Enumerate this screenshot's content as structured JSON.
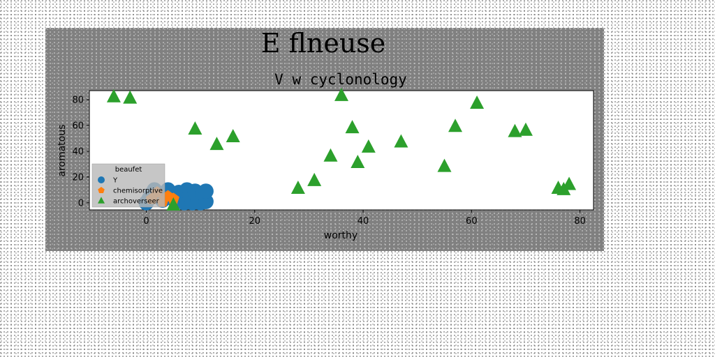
{
  "chart_data": {
    "type": "scatter",
    "suptitle": "E flneuse",
    "title": "V w cyclonology",
    "xlabel": "worthy",
    "ylabel": "aromatous",
    "xlim": [
      -10.5,
      82.5
    ],
    "ylim": [
      -5.5,
      87
    ],
    "xticks": [
      0,
      20,
      40,
      60,
      80
    ],
    "yticks": [
      0,
      20,
      40,
      60,
      80
    ],
    "legend": {
      "title": "beaufet",
      "placement": "lower-left",
      "background": "#b8b8b8"
    },
    "series": [
      {
        "name": "Y",
        "marker": "circle",
        "color": "#1f77b4",
        "points": [
          [
            0,
            0
          ],
          [
            0.5,
            3
          ],
          [
            1,
            7
          ],
          [
            1.5,
            10
          ],
          [
            2,
            5
          ],
          [
            3,
            2
          ],
          [
            3.5,
            8
          ],
          [
            4,
            10
          ],
          [
            5,
            3
          ],
          [
            6,
            8
          ],
          [
            7,
            0
          ],
          [
            7.5,
            10
          ],
          [
            8,
            6
          ],
          [
            8.5,
            0
          ],
          [
            9,
            9
          ],
          [
            9.5,
            3
          ],
          [
            10,
            0
          ],
          [
            10.5,
            7
          ],
          [
            11,
            1
          ],
          [
            11,
            9
          ]
        ]
      },
      {
        "name": "chemisorptive",
        "marker": "pentagon",
        "color": "#ff7f0e",
        "points": [
          [
            1,
            3
          ],
          [
            2,
            8
          ],
          [
            3,
            1
          ],
          [
            4,
            5
          ],
          [
            5,
            3
          ]
        ]
      },
      {
        "name": "archoverseer",
        "marker": "triangle",
        "color": "#2ca02c",
        "points": [
          [
            -6,
            82
          ],
          [
            -3,
            81
          ],
          [
            9,
            57
          ],
          [
            13,
            45
          ],
          [
            16,
            51
          ],
          [
            28,
            11
          ],
          [
            31,
            17
          ],
          [
            34,
            36
          ],
          [
            36,
            83
          ],
          [
            38,
            58
          ],
          [
            39,
            31
          ],
          [
            41,
            43
          ],
          [
            47,
            47
          ],
          [
            55,
            28
          ],
          [
            57,
            59
          ],
          [
            61,
            77
          ],
          [
            68,
            55
          ],
          [
            70,
            56
          ],
          [
            76,
            11
          ],
          [
            77,
            10
          ],
          [
            78,
            14
          ],
          [
            5,
            -2
          ]
        ]
      }
    ]
  }
}
